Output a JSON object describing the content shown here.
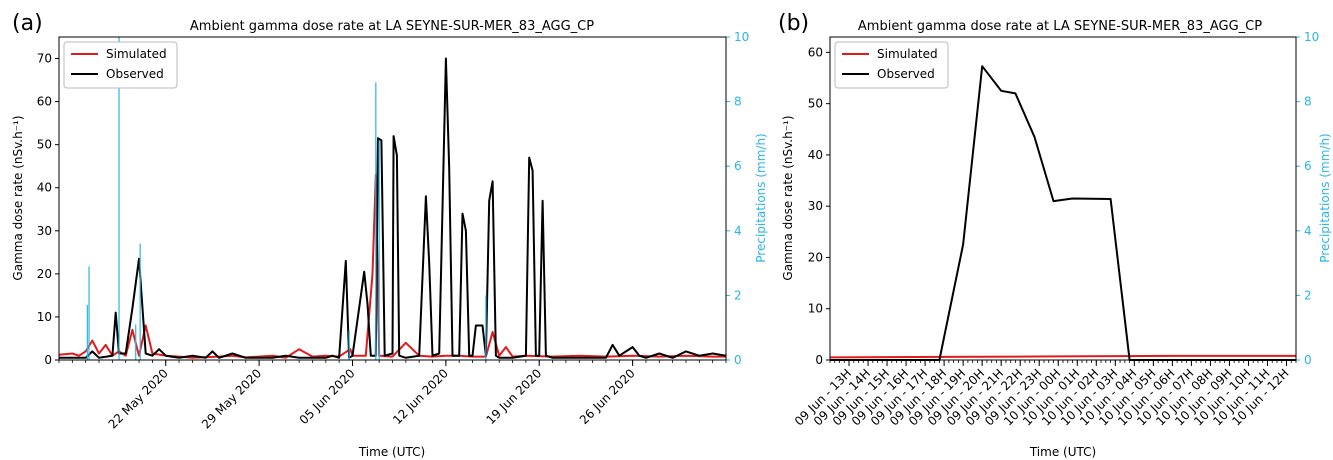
{
  "chart_data": [
    {
      "panel_label": "(a)",
      "type": "line",
      "title": "Ambient gamma dose rate at LA SEYNE-SUR-MER_83_AGG_CP",
      "xlabel": "Time (UTC)",
      "ylabel": "Gamma dose rate (nSv.h⁻¹)",
      "y2label": "Precipitations (mm/h)",
      "ylim": [
        0,
        75
      ],
      "y2lim": [
        0,
        10
      ],
      "yticks": [
        0,
        10,
        20,
        30,
        40,
        50,
        60,
        70
      ],
      "y2ticks": [
        0,
        2,
        4,
        6,
        8,
        10
      ],
      "x_axis_unit": "day",
      "xlim": [
        "2020-05-14",
        "2020-07-03"
      ],
      "xticks": [
        {
          "date": "2020-05-22",
          "label": "22 May 2020"
        },
        {
          "date": "2020-05-29",
          "label": "29 May 2020"
        },
        {
          "date": "2020-06-05",
          "label": "05 Jun 2020"
        },
        {
          "date": "2020-06-12",
          "label": "12 Jun 2020"
        },
        {
          "date": "2020-06-19",
          "label": "19 Jun 2020"
        },
        {
          "date": "2020-06-26",
          "label": "26 Jun 2020"
        }
      ],
      "grid": false,
      "legend_position": "top-left",
      "series": [
        {
          "name": "Simulated",
          "color": "#e31a1c",
          "axis": "left",
          "points": [
            [
              "2020-05-14",
              1.2
            ],
            [
              "2020-05-15",
              1.5
            ],
            [
              "2020-05-15T12",
              1.0
            ],
            [
              "2020-05-16",
              2.0
            ],
            [
              "2020-05-16T12",
              4.5
            ],
            [
              "2020-05-17",
              1.5
            ],
            [
              "2020-05-17T12",
              3.5
            ],
            [
              "2020-05-18",
              1.0
            ],
            [
              "2020-05-18T12",
              2.0
            ],
            [
              "2020-05-19",
              1.0
            ],
            [
              "2020-05-19T12",
              7.0
            ],
            [
              "2020-05-20",
              1.0
            ],
            [
              "2020-05-20T12",
              8.0
            ],
            [
              "2020-05-21",
              1.5
            ],
            [
              "2020-05-22",
              1.0
            ],
            [
              "2020-05-23",
              0.8
            ],
            [
              "2020-05-24",
              0.5
            ],
            [
              "2020-05-26",
              0.8
            ],
            [
              "2020-05-27",
              1.0
            ],
            [
              "2020-05-28",
              0.6
            ],
            [
              "2020-05-29",
              0.8
            ],
            [
              "2020-05-30",
              1.0
            ],
            [
              "2020-05-31",
              0.5
            ],
            [
              "2020-06-01",
              2.5
            ],
            [
              "2020-06-02",
              0.8
            ],
            [
              "2020-06-03",
              1.0
            ],
            [
              "2020-06-04",
              0.8
            ],
            [
              "2020-06-04T20",
              2.5
            ],
            [
              "2020-06-05",
              1.0
            ],
            [
              "2020-06-06",
              1.0
            ],
            [
              "2020-06-06T12",
              20.0
            ],
            [
              "2020-06-06T18",
              43.0
            ],
            [
              "2020-06-07",
              1.0
            ],
            [
              "2020-06-08",
              0.8
            ],
            [
              "2020-06-09",
              4.0
            ],
            [
              "2020-06-10",
              1.0
            ],
            [
              "2020-06-11",
              0.8
            ],
            [
              "2020-06-12",
              1.0
            ],
            [
              "2020-06-13",
              1.0
            ],
            [
              "2020-06-14",
              0.8
            ],
            [
              "2020-06-15",
              0.8
            ],
            [
              "2020-06-15T12",
              6.5
            ],
            [
              "2020-06-16",
              1.0
            ],
            [
              "2020-06-16T12",
              3.0
            ],
            [
              "2020-06-17",
              0.8
            ],
            [
              "2020-06-18",
              1.0
            ],
            [
              "2020-06-20",
              0.8
            ],
            [
              "2020-06-22",
              1.0
            ],
            [
              "2020-06-24",
              0.8
            ],
            [
              "2020-06-26",
              1.0
            ],
            [
              "2020-06-28",
              0.8
            ],
            [
              "2020-06-30",
              1.0
            ],
            [
              "2020-07-02",
              0.8
            ],
            [
              "2020-07-03",
              0.8
            ]
          ]
        },
        {
          "name": "Observed",
          "color": "#000000",
          "axis": "left",
          "points": [
            [
              "2020-05-14",
              0.5
            ],
            [
              "2020-05-16",
              0.5
            ],
            [
              "2020-05-16T12",
              2.0
            ],
            [
              "2020-05-17",
              0.5
            ],
            [
              "2020-05-18",
              1.0
            ],
            [
              "2020-05-18T06",
              11.0
            ],
            [
              "2020-05-18T12",
              1.5
            ],
            [
              "2020-05-19",
              1.5
            ],
            [
              "2020-05-19T12",
              12.0
            ],
            [
              "2020-05-20",
              23.5
            ],
            [
              "2020-05-20T12",
              1.5
            ],
            [
              "2020-05-21",
              1.0
            ],
            [
              "2020-05-21T12",
              2.5
            ],
            [
              "2020-05-22",
              1.0
            ],
            [
              "2020-05-23",
              0.5
            ],
            [
              "2020-05-24",
              1.0
            ],
            [
              "2020-05-25",
              0.5
            ],
            [
              "2020-05-25T12",
              2.0
            ],
            [
              "2020-05-26",
              0.5
            ],
            [
              "2020-05-27",
              1.5
            ],
            [
              "2020-05-28",
              0.5
            ],
            [
              "2020-05-30",
              0.5
            ],
            [
              "2020-05-31",
              1.0
            ],
            [
              "2020-06-01",
              0.5
            ],
            [
              "2020-06-03",
              0.5
            ],
            [
              "2020-06-03T12",
              1.0
            ],
            [
              "2020-06-04",
              0.5
            ],
            [
              "2020-06-04T12",
              23.0
            ],
            [
              "2020-06-04T18",
              0.5
            ],
            [
              "2020-06-05",
              1.0
            ],
            [
              "2020-06-05T21",
              20.5
            ],
            [
              "2020-06-06T03",
              13.0
            ],
            [
              "2020-06-06T09",
              1.0
            ],
            [
              "2020-06-06T18",
              1.0
            ],
            [
              "2020-06-06T22",
              51.5
            ],
            [
              "2020-06-07T04",
              51.0
            ],
            [
              "2020-06-07T10",
              1.0
            ],
            [
              "2020-06-08",
              1.5
            ],
            [
              "2020-06-08T02",
              52.0
            ],
            [
              "2020-06-08T08",
              47.5
            ],
            [
              "2020-06-08T12",
              1.0
            ],
            [
              "2020-06-09",
              0.5
            ],
            [
              "2020-06-10",
              1.0
            ],
            [
              "2020-06-10T12",
              38.0
            ],
            [
              "2020-06-10T18",
              22.5
            ],
            [
              "2020-06-11",
              1.0
            ],
            [
              "2020-06-11T12",
              1.5
            ],
            [
              "2020-06-12",
              70.0
            ],
            [
              "2020-06-12T06",
              44.5
            ],
            [
              "2020-06-12T12",
              1.0
            ],
            [
              "2020-06-13",
              1.0
            ],
            [
              "2020-06-13T06",
              34.0
            ],
            [
              "2020-06-13T12",
              30.0
            ],
            [
              "2020-06-13T18",
              1.0
            ],
            [
              "2020-06-14",
              1.0
            ],
            [
              "2020-06-14T06",
              8.0
            ],
            [
              "2020-06-14T18",
              8.0
            ],
            [
              "2020-06-15",
              1.0
            ],
            [
              "2020-06-15T06",
              37.0
            ],
            [
              "2020-06-15T12",
              41.5
            ],
            [
              "2020-06-15T18",
              1.0
            ],
            [
              "2020-06-16",
              0.5
            ],
            [
              "2020-06-17",
              0.5
            ],
            [
              "2020-06-18",
              1.0
            ],
            [
              "2020-06-18T06",
              47.0
            ],
            [
              "2020-06-18T12",
              44.0
            ],
            [
              "2020-06-18T18",
              1.0
            ],
            [
              "2020-06-19",
              1.0
            ],
            [
              "2020-06-19T06",
              37.0
            ],
            [
              "2020-06-19T12",
              1.0
            ],
            [
              "2020-06-20",
              0.5
            ],
            [
              "2020-06-22",
              0.5
            ],
            [
              "2020-06-24",
              0.5
            ],
            [
              "2020-06-24T12",
              3.5
            ],
            [
              "2020-06-25",
              1.0
            ],
            [
              "2020-06-26",
              3.0
            ],
            [
              "2020-06-26T12",
              1.0
            ],
            [
              "2020-06-27",
              0.5
            ],
            [
              "2020-06-28",
              1.5
            ],
            [
              "2020-06-29",
              0.5
            ],
            [
              "2020-06-30",
              2.0
            ],
            [
              "2020-07-01",
              1.0
            ],
            [
              "2020-07-02",
              1.5
            ],
            [
              "2020-07-03",
              1.0
            ]
          ]
        },
        {
          "name": "",
          "color": "#29b6e5",
          "axis": "right",
          "kind": "bars",
          "points": [
            [
              "2020-05-16T03",
              1.7
            ],
            [
              "2020-05-16T06",
              2.9
            ],
            [
              "2020-05-18T12",
              10.0
            ],
            [
              "2020-05-19T18",
              1.1
            ],
            [
              "2020-05-20T02",
              3.6
            ],
            [
              "2020-06-04T18",
              0.9
            ],
            [
              "2020-06-06T18",
              8.6
            ],
            [
              "2020-06-07",
              6.8
            ],
            [
              "2020-06-15",
              2.0
            ]
          ]
        }
      ]
    },
    {
      "panel_label": "(b)",
      "type": "line",
      "title": "Ambient gamma dose rate at LA SEYNE-SUR-MER_83_AGG_CP",
      "xlabel": "Time (UTC)",
      "ylabel": "Gamma dose rate (nSv.h⁻¹)",
      "y2label": "Precipitations (mm/h)",
      "ylim": [
        0,
        63
      ],
      "y2lim": [
        0,
        10
      ],
      "yticks": [
        0,
        10,
        20,
        30,
        40,
        50,
        60
      ],
      "y2ticks": [
        0,
        2,
        4,
        6,
        8,
        10
      ],
      "x_axis_unit": "hour",
      "xlim": [
        "2020-06-09T12",
        "2020-06-10T12:30"
      ],
      "xticks": [
        {
          "date": "2020-06-09T13",
          "label": "09 Jun - 13H"
        },
        {
          "date": "2020-06-09T14",
          "label": "09 Jun - 14H"
        },
        {
          "date": "2020-06-09T15",
          "label": "09 Jun - 15H"
        },
        {
          "date": "2020-06-09T16",
          "label": "09 Jun - 16H"
        },
        {
          "date": "2020-06-09T17",
          "label": "09 Jun - 17H"
        },
        {
          "date": "2020-06-09T18",
          "label": "09 Jun - 18H"
        },
        {
          "date": "2020-06-09T19",
          "label": "09 Jun - 19H"
        },
        {
          "date": "2020-06-09T20",
          "label": "09 Jun - 20H"
        },
        {
          "date": "2020-06-09T21",
          "label": "09 Jun - 21H"
        },
        {
          "date": "2020-06-09T22",
          "label": "09 Jun - 22H"
        },
        {
          "date": "2020-06-09T23",
          "label": "09 Jun - 23H"
        },
        {
          "date": "2020-06-10T00",
          "label": "10 Jun - 00H"
        },
        {
          "date": "2020-06-10T01",
          "label": "10 Jun - 01H"
        },
        {
          "date": "2020-06-10T02",
          "label": "10 Jun - 02H"
        },
        {
          "date": "2020-06-10T03",
          "label": "10 Jun - 03H"
        },
        {
          "date": "2020-06-10T04",
          "label": "10 Jun - 04H"
        },
        {
          "date": "2020-06-10T05",
          "label": "10 Jun - 05H"
        },
        {
          "date": "2020-06-10T06",
          "label": "10 Jun - 06H"
        },
        {
          "date": "2020-06-10T07",
          "label": "10 Jun - 07H"
        },
        {
          "date": "2020-06-10T08",
          "label": "10 Jun - 08H"
        },
        {
          "date": "2020-06-10T09",
          "label": "10 Jun - 09H"
        },
        {
          "date": "2020-06-10T10",
          "label": "10 Jun - 10H"
        },
        {
          "date": "2020-06-10T11",
          "label": "10 Jun - 11H"
        },
        {
          "date": "2020-06-10T12",
          "label": "10 Jun - 12H"
        }
      ],
      "grid": false,
      "legend_position": "top-left",
      "series": [
        {
          "name": "Simulated",
          "color": "#e31a1c",
          "axis": "left",
          "points": [
            [
              "2020-06-09T12",
              0.5
            ],
            [
              "2020-06-09T18",
              0.6
            ],
            [
              "2020-06-10T00",
              0.7
            ],
            [
              "2020-06-10T06",
              0.8
            ],
            [
              "2020-06-10T12:30",
              0.8
            ]
          ]
        },
        {
          "name": "Observed",
          "color": "#000000",
          "axis": "left",
          "points": [
            [
              "2020-06-09T12",
              0.0
            ],
            [
              "2020-06-09T17:45",
              0.0
            ],
            [
              "2020-06-09T19",
              22.5
            ],
            [
              "2020-06-09T20",
              57.3
            ],
            [
              "2020-06-09T21",
              52.5
            ],
            [
              "2020-06-09T21:45",
              52.0
            ],
            [
              "2020-06-09T22:45",
              43.5
            ],
            [
              "2020-06-09T23:45",
              31.0
            ],
            [
              "2020-06-10T00:45",
              31.5
            ],
            [
              "2020-06-10T02:45",
              31.4
            ],
            [
              "2020-06-10T03:45",
              0.0
            ],
            [
              "2020-06-10T12:30",
              0.0
            ]
          ]
        }
      ]
    }
  ]
}
